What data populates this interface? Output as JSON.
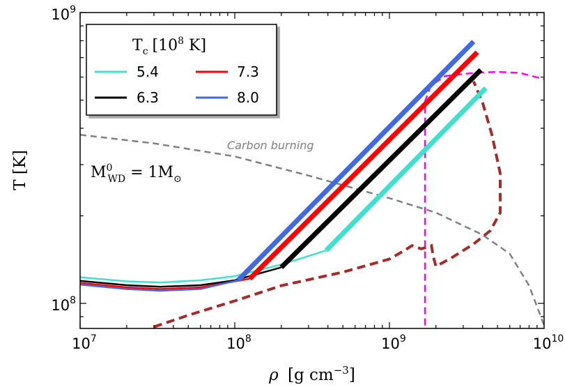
{
  "chart_data": {
    "type": "line",
    "x_scale": "log",
    "y_scale": "log",
    "xlim": [
      10000000.0,
      10000000000.0
    ],
    "ylim": [
      82000000.0,
      1000000000.0
    ],
    "xlabel_symbol": "ρ",
    "xlabel_unit": "[g cm",
    "xlabel_exp": "−3",
    "xlabel_close": "]",
    "ylabel": "T [K]",
    "x_ticks": [
      {
        "value": 10000000.0,
        "base": "10",
        "exp": "7"
      },
      {
        "value": 100000000.0,
        "base": "10",
        "exp": "8"
      },
      {
        "value": 1000000000.0,
        "base": "10",
        "exp": "9"
      },
      {
        "value": 10000000000.0,
        "base": "10",
        "exp": "10"
      }
    ],
    "y_ticks": [
      {
        "value": 100000000.0,
        "base": "10",
        "exp": "8"
      },
      {
        "value": 1000000000.0,
        "base": "10",
        "exp": "9"
      }
    ],
    "legend": {
      "title_main": "T",
      "title_sub": "c",
      "title_unit_pre": "[10",
      "title_unit_exp": "8",
      "title_unit_post": " K]",
      "placement": "top-left",
      "entries": [
        "5.4",
        "7.3",
        "6.3",
        "8.0"
      ]
    },
    "annotations": {
      "carbon_burning": "Carbon burning",
      "mass_main": "M",
      "mass_sup": "0",
      "mass_sub": "WD",
      "mass_eq": " = 1M",
      "mass_sun": "⊙"
    },
    "series": [
      {
        "name": "5.4",
        "color": "#40E0D0",
        "thin": [
          [
            10000000.0,
            123000000.0
          ],
          [
            20000000.0,
            119000000.0
          ],
          [
            33000000.0,
            118000000.0
          ],
          [
            60000000.0,
            120000000.0
          ],
          [
            100000000.0,
            124000000.0
          ],
          [
            200000000.0,
            136000000.0
          ],
          [
            390000000.0,
            152000000.0
          ]
        ],
        "thick": [
          [
            390000000.0,
            152000000.0
          ],
          [
            4200000000.0,
            550000000.0
          ]
        ]
      },
      {
        "name": "6.3",
        "color": "#000000",
        "thin": [
          [
            10000000.0,
            119500000.0
          ],
          [
            20000000.0,
            115500000.0
          ],
          [
            33000000.0,
            114000000.0
          ],
          [
            60000000.0,
            115500000.0
          ],
          [
            100000000.0,
            120000000.0
          ],
          [
            200000000.0,
            133000000.0
          ]
        ],
        "thick": [
          [
            200000000.0,
            133000000.0
          ],
          [
            3900000000.0,
            635000000.0
          ]
        ]
      },
      {
        "name": "7.3",
        "color": "#FF0000",
        "thin": [
          [
            10000000.0,
            117500000.0
          ],
          [
            20000000.0,
            113500000.0
          ],
          [
            33000000.0,
            112000000.0
          ],
          [
            60000000.0,
            113500000.0
          ],
          [
            125000000.0,
            121500000.0
          ]
        ],
        "thick": [
          [
            125000000.0,
            121500000.0
          ],
          [
            3700000000.0,
            730000000.0
          ]
        ]
      },
      {
        "name": "8.0",
        "color": "#4169E1",
        "thin": [
          [
            10000000.0,
            116000000.0
          ],
          [
            20000000.0,
            112000000.0
          ],
          [
            33000000.0,
            110500000.0
          ],
          [
            60000000.0,
            112000000.0
          ],
          [
            105000000.0,
            120000000.0
          ]
        ],
        "thick": [
          [
            105000000.0,
            120000000.0
          ],
          [
            3500000000.0,
            795000000.0
          ]
        ]
      }
    ],
    "reference_curves": [
      {
        "id": "carbon-burning-curve",
        "color": "#808080",
        "dash": "9,6",
        "width": 2.5,
        "points": [
          [
            10000000.0,
            380000000.0
          ],
          [
            30000000.0,
            355000000.0
          ],
          [
            100000000.0,
            320000000.0
          ],
          [
            300000000.0,
            275000000.0
          ],
          [
            1000000000.0,
            230000000.0
          ],
          [
            2000000000.0,
            205000000.0
          ],
          [
            4000000000.0,
            172000000.0
          ],
          [
            6000000000.0,
            148000000.0
          ],
          [
            8000000000.0,
            115000000.0
          ],
          [
            10000000000.0,
            84000000.0
          ]
        ]
      },
      {
        "id": "magenta-curve",
        "color": "#FF00FF",
        "dash": "10,6",
        "width": 2.5,
        "points": [
          [
            1700000000.0,
            84000000.0
          ],
          [
            1700000000.0,
            495000000.0
          ],
          [
            1850000000.0,
            560000000.0
          ],
          [
            2300000000.0,
            605000000.0
          ],
          [
            3500000000.0,
            620000000.0
          ],
          [
            5000000000.0,
            625000000.0
          ],
          [
            7000000000.0,
            620000000.0
          ],
          [
            10000000000.0,
            590000000.0
          ]
        ]
      },
      {
        "id": "brown-curve",
        "color": "#A52A2A",
        "dash": "12,7",
        "width": 4,
        "points": [
          [
            30000000.0,
            83000000.0
          ],
          [
            50000000.0,
            91000000.0
          ],
          [
            100000000.0,
            102000000.0
          ],
          [
            200000000.0,
            115000000.0
          ],
          [
            500000000.0,
            128000000.0
          ],
          [
            1000000000.0,
            142000000.0
          ],
          [
            1250000000.0,
            152000000.0
          ],
          [
            1400000000.0,
            158000000.0
          ],
          [
            1600000000.0,
            154000000.0
          ],
          [
            1750000000.0,
            156000000.0
          ],
          [
            1870000000.0,
            158000000.0
          ],
          [
            1920000000.0,
            145000000.0
          ],
          [
            2000000000.0,
            134000000.0
          ],
          [
            2500000000.0,
            143000000.0
          ],
          [
            3500000000.0,
            160000000.0
          ],
          [
            4500000000.0,
            178000000.0
          ],
          [
            5200000000.0,
            205000000.0
          ],
          [
            5200000000.0,
            280000000.0
          ],
          [
            4600000000.0,
            380000000.0
          ],
          [
            4000000000.0,
            490000000.0
          ],
          [
            3500000000.0,
            580000000.0
          ]
        ]
      }
    ]
  }
}
